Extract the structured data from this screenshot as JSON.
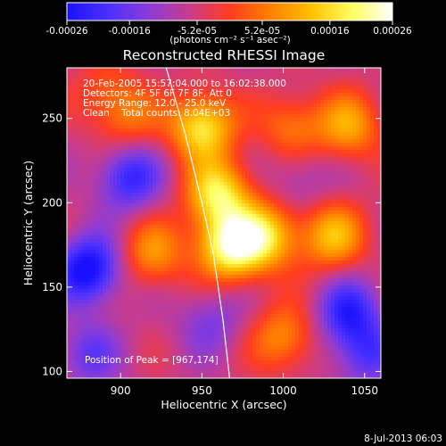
{
  "colorbar": {
    "tick_labels": [
      "-0.00026",
      "-0.00016",
      "-5.2e-05",
      "5.2e-05",
      "0.00016",
      "0.00026"
    ],
    "tick_values": [
      -0.00026,
      -0.00016,
      -5.2e-05,
      5.2e-05,
      0.00016,
      0.00026
    ],
    "range": [
      -0.00026,
      0.00026
    ],
    "unit_label": "(photons cm⁻² s⁻¹ asec⁻²)",
    "colors": [
      "#1a10ff",
      "#4a30ff",
      "#8a3cd8",
      "#c83c8c",
      "#ff3c20",
      "#ff8000",
      "#ffc000",
      "#ffff60",
      "#ffffff"
    ]
  },
  "chart_data": {
    "type": "heatmap",
    "title": "Reconstructed RHESSI Image",
    "xlabel": "Heliocentric X (arcsec)",
    "ylabel": "Heliocentric Y (arcsec)",
    "xlim": [
      867,
      1060
    ],
    "ylim": [
      96,
      280
    ],
    "x_ticks": [
      900,
      950,
      1000,
      1050
    ],
    "y_ticks": [
      100,
      150,
      200,
      250
    ],
    "x_tick_labels": [
      "900",
      "950",
      "1000",
      "1050"
    ],
    "y_tick_labels": [
      "100",
      "150",
      "200",
      "250"
    ],
    "annotations": [
      "20-Feb-2005 15:57:04.000 to 16:02:38.000",
      "Detectors: 4F 5F 6F 7F 8F, Att 0",
      "Energy Range: 12.0 - 25.0 keV",
      "Clean    Total counts: 8.04E+03"
    ],
    "peak_label": "Position of Peak = [967,174]",
    "peak": [
      967,
      174
    ],
    "limb_curve": [
      [
        928,
        280
      ],
      [
        940,
        240
      ],
      [
        950,
        200
      ],
      [
        957,
        170
      ],
      [
        963,
        130
      ],
      [
        967,
        96
      ]
    ],
    "sources": [
      {
        "x": 950,
        "y": 245,
        "peak": 0.00022
      },
      {
        "x": 967,
        "y": 174,
        "peak": 0.00026
      },
      {
        "x": 960,
        "y": 205,
        "peak": 0.00022
      },
      {
        "x": 990,
        "y": 180,
        "peak": 0.00018
      },
      {
        "x": 1030,
        "y": 180,
        "peak": 0.00016
      },
      {
        "x": 1040,
        "y": 245,
        "peak": 0.00014
      },
      {
        "x": 1005,
        "y": 245,
        "peak": 0.0001
      },
      {
        "x": 920,
        "y": 170,
        "peak": 0.00012
      },
      {
        "x": 1000,
        "y": 120,
        "peak": 0.00012
      },
      {
        "x": 905,
        "y": 250,
        "peak": 8e-05
      },
      {
        "x": 890,
        "y": 265,
        "peak": 6e-05
      },
      {
        "x": 880,
        "y": 160,
        "peak": -0.00024
      },
      {
        "x": 905,
        "y": 215,
        "peak": -0.00018
      },
      {
        "x": 1040,
        "y": 135,
        "peak": -0.00018
      },
      {
        "x": 1050,
        "y": 110,
        "peak": -0.00014
      },
      {
        "x": 955,
        "y": 130,
        "peak": -0.0001
      },
      {
        "x": 880,
        "y": 110,
        "peak": -0.00012
      },
      {
        "x": 1010,
        "y": 215,
        "peak": -8e-05
      }
    ]
  },
  "footer": {
    "timestamp": "8-Jul-2013 06:03"
  }
}
